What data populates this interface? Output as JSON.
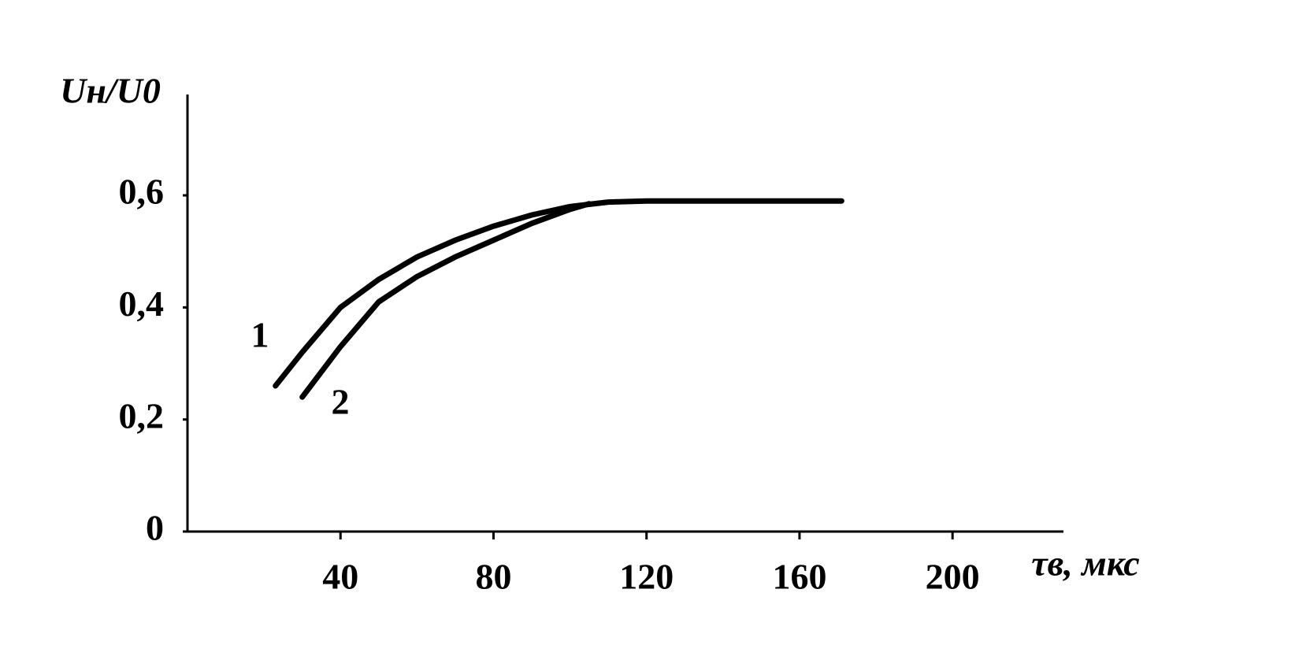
{
  "chart_data": {
    "type": "line",
    "ylabel": "Uн/U0",
    "xlabel": "τв, мкс",
    "series": [
      {
        "name": "1",
        "color": "#000000",
        "x": [
          23,
          30,
          40,
          50,
          60,
          70,
          80,
          90,
          100,
          110,
          120,
          140,
          160,
          171
        ],
        "values": [
          0.26,
          0.32,
          0.4,
          0.45,
          0.49,
          0.52,
          0.545,
          0.565,
          0.58,
          0.588,
          0.59,
          0.59,
          0.59,
          0.59
        ]
      },
      {
        "name": "2",
        "color": "#000000",
        "x": [
          30,
          40,
          50,
          60,
          70,
          80,
          90,
          100,
          105
        ],
        "values": [
          0.24,
          0.33,
          0.41,
          0.455,
          0.49,
          0.52,
          0.55,
          0.575,
          0.585
        ]
      }
    ],
    "xlim": [
      0,
      229
    ],
    "xticks": [
      40,
      80,
      120,
      160,
      200
    ],
    "ylim": [
      0,
      0.78
    ],
    "yticks": [
      0,
      {
        "value": 0.2,
        "label": "0,2"
      },
      {
        "value": 0.4,
        "label": "0,4"
      },
      {
        "value": 0.6,
        "label": "0,6"
      }
    ],
    "grid": false
  }
}
